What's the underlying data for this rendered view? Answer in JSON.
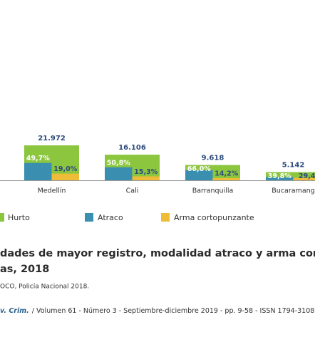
{
  "chart_data": {
    "type": "bar",
    "categories": [
      "Medellín",
      "Cali",
      "Barranquilla",
      "Bucaramang"
    ],
    "series": [
      {
        "name": "Hurto",
        "color": "#8cc63f",
        "values": [
          21972,
          16106,
          9618,
          5142
        ],
        "value_labels": [
          "21.972",
          "16.106",
          "9.618",
          "5.142"
        ]
      },
      {
        "name": "Atraco",
        "color": "#3a8fb0",
        "values": [
          49.7,
          50.8,
          66.0,
          39.8
        ],
        "value_labels": [
          "49,7%",
          "50,8%",
          "66,0%",
          "39,8%"
        ]
      },
      {
        "name": "Arma cortopunzante",
        "color": "#efbc3a",
        "values": [
          19.0,
          15.3,
          14.2,
          29.4
        ],
        "value_labels": [
          "19,0%",
          "15,3%",
          "14,2%",
          "29,4"
        ]
      }
    ]
  },
  "caption": {
    "line1": "dades de mayor registro, modalidad atraco y arma cortop",
    "line2": "as, 2018",
    "source": "OCO, Policía Nacional 2018."
  },
  "footer": {
    "journal": "v. Crim.",
    "details": "/ Volumen 61 - Número 3 - Septiembre-diciembre 2019 - pp. 9-58 - ISSN 1794-3108"
  }
}
